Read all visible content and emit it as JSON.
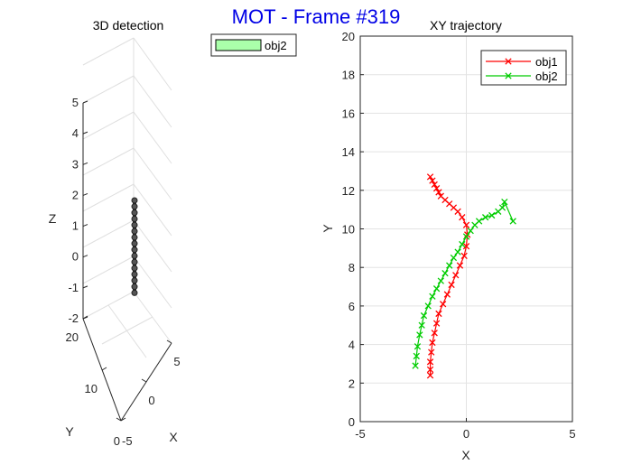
{
  "figure_title": "MOT - Frame #319",
  "chart_data": [
    {
      "type": "scatter3d",
      "title": "3D detection",
      "xlabel": "X",
      "ylabel": "Y",
      "zlabel": "Z",
      "xlim": [
        -5,
        5
      ],
      "ylim": [
        0,
        20
      ],
      "zlim": [
        -2,
        5
      ],
      "x_ticks": [
        "-5",
        "0",
        "5"
      ],
      "y_ticks": [
        "0",
        "10",
        "20"
      ],
      "z_ticks": [
        "-2",
        "-1",
        "0",
        "1",
        "2",
        "3",
        "4",
        "5"
      ],
      "legend": [
        "obj2"
      ],
      "legend_color": "#aaffaa",
      "marker_color": "#222222",
      "points": {
        "x": [
          1.8,
          1.8,
          1.8,
          1.8,
          1.8,
          1.8,
          1.8,
          1.8,
          1.8,
          1.8,
          1.8,
          1.8,
          1.8,
          1.8,
          1.8,
          1.8
        ],
        "y": [
          10.4,
          10.4,
          10.4,
          10.4,
          10.4,
          10.4,
          10.4,
          10.4,
          10.4,
          10.4,
          10.4,
          10.4,
          10.4,
          10.4,
          10.4,
          10.4
        ],
        "z": [
          -1.2,
          -1.0,
          -0.8,
          -0.6,
          -0.4,
          -0.2,
          0.0,
          0.2,
          0.4,
          0.6,
          0.8,
          1.0,
          1.2,
          1.4,
          1.6,
          1.8
        ]
      }
    },
    {
      "type": "line",
      "title": "XY trajectory",
      "xlabel": "X",
      "ylabel": "Y",
      "xlim": [
        -5,
        5
      ],
      "ylim": [
        0,
        20
      ],
      "x_ticks": [
        -5,
        0,
        5
      ],
      "y_ticks": [
        0,
        2,
        4,
        6,
        8,
        10,
        12,
        14,
        16,
        18,
        20
      ],
      "grid": true,
      "legend_position": "top-right",
      "series": [
        {
          "name": "obj1",
          "color": "#ff0000",
          "marker": "x",
          "x": [
            -1.7,
            -1.6,
            -1.5,
            -1.4,
            -1.3,
            -1.2,
            -1.0,
            -0.8,
            -0.6,
            -0.4,
            -0.2,
            0.0,
            0.05,
            0.0,
            -0.1,
            -0.3,
            -0.5,
            -0.7,
            -0.9,
            -1.1,
            -1.3,
            -1.4,
            -1.5,
            -1.6,
            -1.65,
            -1.7,
            -1.7,
            -1.7
          ],
          "y": [
            12.7,
            12.5,
            12.3,
            12.1,
            11.9,
            11.7,
            11.5,
            11.3,
            11.1,
            10.9,
            10.6,
            10.2,
            9.7,
            9.1,
            8.6,
            8.1,
            7.6,
            7.1,
            6.6,
            6.1,
            5.6,
            5.1,
            4.6,
            4.1,
            3.6,
            3.1,
            2.7,
            2.4
          ]
        },
        {
          "name": "obj2",
          "color": "#00cc00",
          "marker": "x",
          "x": [
            -2.4,
            -2.35,
            -2.3,
            -2.2,
            -2.1,
            -2.0,
            -1.8,
            -1.6,
            -1.4,
            -1.2,
            -1.0,
            -0.8,
            -0.6,
            -0.4,
            -0.2,
            0.0,
            0.2,
            0.4,
            0.6,
            0.9,
            1.2,
            1.5,
            1.7,
            1.8,
            2.2
          ],
          "y": [
            2.9,
            3.4,
            3.9,
            4.5,
            5.0,
            5.5,
            6.0,
            6.5,
            6.9,
            7.3,
            7.7,
            8.1,
            8.5,
            8.8,
            9.2,
            9.6,
            9.9,
            10.2,
            10.4,
            10.6,
            10.7,
            10.9,
            11.1,
            11.4,
            10.4
          ]
        }
      ]
    }
  ]
}
